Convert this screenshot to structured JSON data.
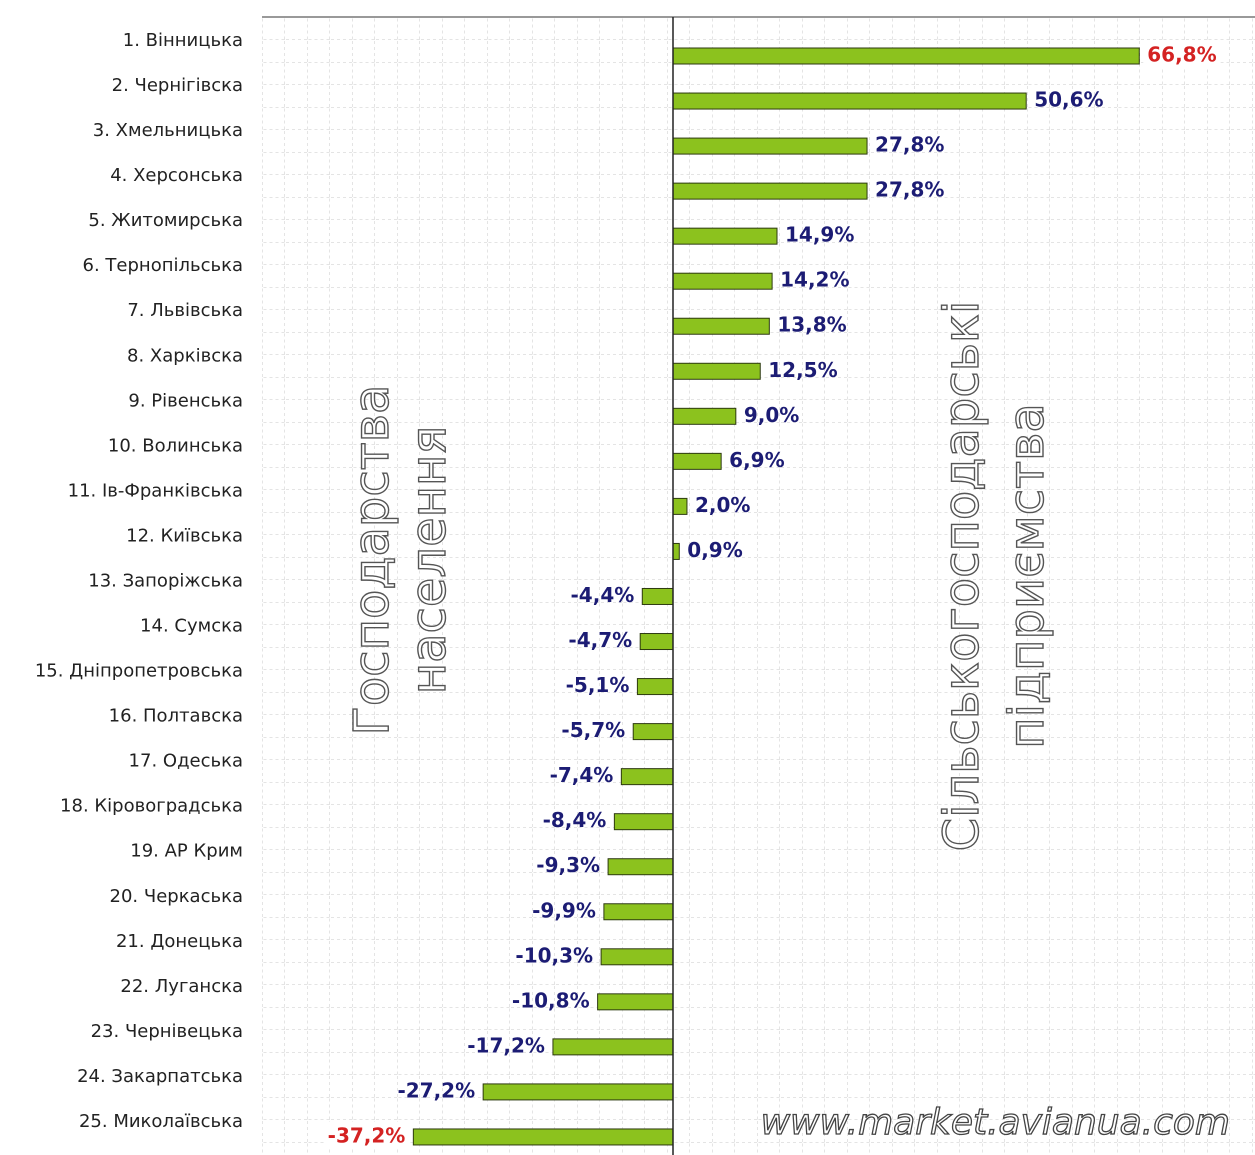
{
  "chart_data": {
    "type": "bar",
    "orientation": "horizontal",
    "categories": [
      "1. Вінницька",
      "2. Чернігівска",
      "3. Хмельницька",
      "4. Херсонська",
      "5. Житомирська",
      "6. Тернопільська",
      "7. Львівська",
      "8. Харківска",
      "9. Рівенська",
      "10. Волинська",
      "11. Ів-Франківська",
      "12. Київська",
      "13. Запоріжська",
      "14. Сумска",
      "15. Дніпропетровська",
      "16. Полтавска",
      "17. Одеська",
      "18. Кіровоградська",
      "19. АР Крим",
      "20. Черкаська",
      "21. Донецька",
      "22. Луганска",
      "23. Чернівецька",
      "24. Закарпатська",
      "25. Миколаївська"
    ],
    "values": [
      66.8,
      50.6,
      27.8,
      27.8,
      14.9,
      14.2,
      13.8,
      12.5,
      9.0,
      6.9,
      2.0,
      0.9,
      -4.4,
      -4.7,
      -5.1,
      -5.7,
      -7.4,
      -8.4,
      -9.3,
      -9.9,
      -10.3,
      -10.8,
      -17.2,
      -27.2,
      -37.2
    ],
    "value_labels": [
      "66,8%",
      "50,6%",
      "27,8%",
      "27,8%",
      "14,9%",
      "14,2%",
      "13,8%",
      "12,5%",
      "9,0%",
      "6,9%",
      "2,0%",
      "0,9%",
      "-4,4%",
      "-4,7%",
      "-5,1%",
      "-5,7%",
      "-7,4%",
      "-8,4%",
      "-9,3%",
      "-9,9%",
      "-10,3%",
      "-10,8%",
      "-17,2%",
      "-27,2%",
      "-37,2%"
    ],
    "value_label_colors": [
      "#d42222",
      "#1c1c74",
      "#1c1c74",
      "#1c1c74",
      "#1c1c74",
      "#1c1c74",
      "#1c1c74",
      "#1c1c74",
      "#1c1c74",
      "#1c1c74",
      "#1c1c74",
      "#1c1c74",
      "#1c1c74",
      "#1c1c74",
      "#1c1c74",
      "#1c1c74",
      "#1c1c74",
      "#1c1c74",
      "#1c1c74",
      "#1c1c74",
      "#1c1c74",
      "#1c1c74",
      "#1c1c74",
      "#1c1c74",
      "#d42222"
    ],
    "color": "#8cc21e",
    "annotations": [
      "Господарства",
      "населення",
      "Сільськогосподарські",
      "підприємства",
      "www.market.avianua.com"
    ]
  }
}
